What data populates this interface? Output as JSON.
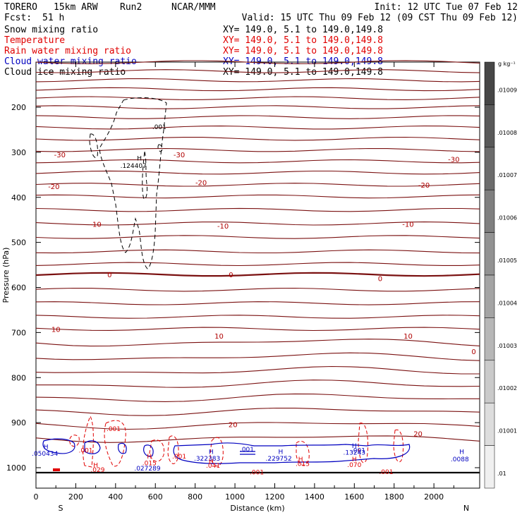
{
  "header": {
    "model": "TORERO",
    "grid": "15km ARW",
    "run": "Run2",
    "org": "NCAR/MMM",
    "init": "Init: 12 UTC Tue 07 Feb 12",
    "fcst_label": "Fcst:",
    "fcst_value": "51 h",
    "valid": "Valid: 15 UTC Thu 09 Feb 12 (09 CST Thu 09 Feb 12)"
  },
  "legend": [
    {
      "name": "Snow mixing ratio",
      "color": "#000000",
      "range": "XY= 149.0,  5.1 to 149.0,149.8"
    },
    {
      "name": "Temperature",
      "color": "#e00000",
      "range": "XY= 149.0,  5.1 to 149.0,149.8"
    },
    {
      "name": "Rain water mixing ratio",
      "color": "#e00000",
      "range": "XY= 149.0,  5.1 to 149.0,149.8"
    },
    {
      "name": "Cloud water mixing ratio",
      "color": "#0000c0",
      "range": "XY= 149.0,  5.1 to 149.0,149.8"
    },
    {
      "name": "Cloud ice mixing ratio",
      "color": "#000000",
      "range": "XY= 149.0,  5.1 to 149.0,149.8"
    }
  ],
  "chart_data": {
    "type": "cross-section contour",
    "xlabel": "Distance (km)",
    "ylabel": "Pressure (hPa)",
    "xlim": [
      0,
      2230
    ],
    "ylim": [
      1020,
      100
    ],
    "xticks": [
      "0",
      "200",
      "400",
      "600",
      "800",
      "1000",
      "1200",
      "1400",
      "1600",
      "1800",
      "2000"
    ],
    "yticks": [
      "200",
      "300",
      "400",
      "500",
      "600",
      "700",
      "800",
      "900",
      "1000"
    ],
    "end_labels": {
      "left": "S",
      "right": "N"
    },
    "colorbar": {
      "unit": "g kg⁻¹",
      "labels": [
        ".01009",
        ".01008",
        ".01007",
        ".01006",
        ".01005",
        ".01004",
        ".01003",
        ".01002",
        ".01001",
        ".01"
      ]
    },
    "temperature_labels": [
      {
        "text": "-30",
        "x": 120,
        "p": 305
      },
      {
        "text": "-30",
        "x": 720,
        "p": 305
      },
      {
        "text": "-30",
        "x": 2100,
        "p": 315
      },
      {
        "text": "-20",
        "x": 90,
        "p": 375
      },
      {
        "text": "-20",
        "x": 830,
        "p": 367
      },
      {
        "text": "-20",
        "x": 1950,
        "p": 372
      },
      {
        "text": "-10",
        "x": 300,
        "p": 459
      },
      {
        "text": "-10",
        "x": 940,
        "p": 463
      },
      {
        "text": "-10",
        "x": 1870,
        "p": 459
      },
      {
        "text": "0",
        "x": 370,
        "p": 571
      },
      {
        "text": "0",
        "x": 980,
        "p": 571
      },
      {
        "text": "0",
        "x": 1730,
        "p": 580
      },
      {
        "text": "10",
        "x": 100,
        "p": 692
      },
      {
        "text": "10",
        "x": 920,
        "p": 707
      },
      {
        "text": "10",
        "x": 1870,
        "p": 707
      },
      {
        "text": "0",
        "x": 2200,
        "p": 742
      },
      {
        "text": "20",
        "x": 990,
        "p": 904
      },
      {
        "text": "20",
        "x": 1920,
        "p": 924
      }
    ],
    "field_labels": [
      {
        "text": ".001",
        "x": 620,
        "p": 242,
        "color": "#000000"
      },
      {
        "text": "H",
        "x": 520,
        "p": 312,
        "color": "#000000"
      },
      {
        "text": ".124407",
        "x": 490,
        "p": 328,
        "color": "#000000"
      },
      {
        "text": ".001",
        "x": 390,
        "p": 912,
        "color": "#e00000"
      },
      {
        "text": ".001",
        "x": 250,
        "p": 960,
        "color": "#e00000"
      },
      {
        "text": ".001",
        "x": 720,
        "p": 973,
        "color": "#e00000"
      },
      {
        "text": "H",
        "x": 50,
        "p": 952,
        "color": "#0000c0"
      },
      {
        "text": ".050434",
        "x": 45,
        "p": 967,
        "color": "#0000c0"
      },
      {
        "text": "H",
        "x": 300,
        "p": 993,
        "color": "#e00000"
      },
      {
        "text": ".029",
        "x": 310,
        "p": 1003,
        "color": "#e00000"
      },
      {
        "text": "H",
        "x": 570,
        "p": 973,
        "color": "#e00000"
      },
      {
        "text": ".015",
        "x": 570,
        "p": 988,
        "color": "#e00000"
      },
      {
        "text": ".027289",
        "x": 560,
        "p": 1000,
        "color": "#0000c0"
      },
      {
        "text": "H",
        "x": 880,
        "p": 963,
        "color": "#0000c0"
      },
      {
        "text": ".322383",
        "x": 860,
        "p": 978,
        "color": "#0000c0"
      },
      {
        "text": ".001",
        "x": 1060,
        "p": 958,
        "color": "#0000c0"
      },
      {
        "text": ".041",
        "x": 890,
        "p": 994,
        "color": "#e00000"
      },
      {
        "text": "H",
        "x": 880,
        "p": 984,
        "color": "#e00000"
      },
      {
        "text": ".001",
        "x": 1110,
        "p": 1009,
        "color": "#e00000"
      },
      {
        "text": "H",
        "x": 1230,
        "p": 963,
        "color": "#0000c0"
      },
      {
        "text": ".229752",
        "x": 1220,
        "p": 978,
        "color": "#0000c0"
      },
      {
        "text": "H",
        "x": 1330,
        "p": 980,
        "color": "#e00000"
      },
      {
        "text": ".015",
        "x": 1340,
        "p": 990,
        "color": "#e00000"
      },
      {
        "text": "H",
        "x": 1600,
        "p": 950,
        "color": "#0000c0"
      },
      {
        "text": ".13243",
        "x": 1600,
        "p": 965,
        "color": "#0000c0"
      },
      {
        "text": "H",
        "x": 1600,
        "p": 980,
        "color": "#e00000"
      },
      {
        "text": ".070",
        "x": 1600,
        "p": 992,
        "color": "#e00000"
      },
      {
        "text": ".001",
        "x": 1760,
        "p": 1008,
        "color": "#e00000"
      },
      {
        "text": "H",
        "x": 2140,
        "p": 963,
        "color": "#0000c0"
      },
      {
        "text": ".0088",
        "x": 2130,
        "p": 980,
        "color": "#0000c0"
      },
      {
        "text": ".001",
        "x": 1620,
        "p": 960,
        "color": "#0000c0"
      }
    ]
  }
}
